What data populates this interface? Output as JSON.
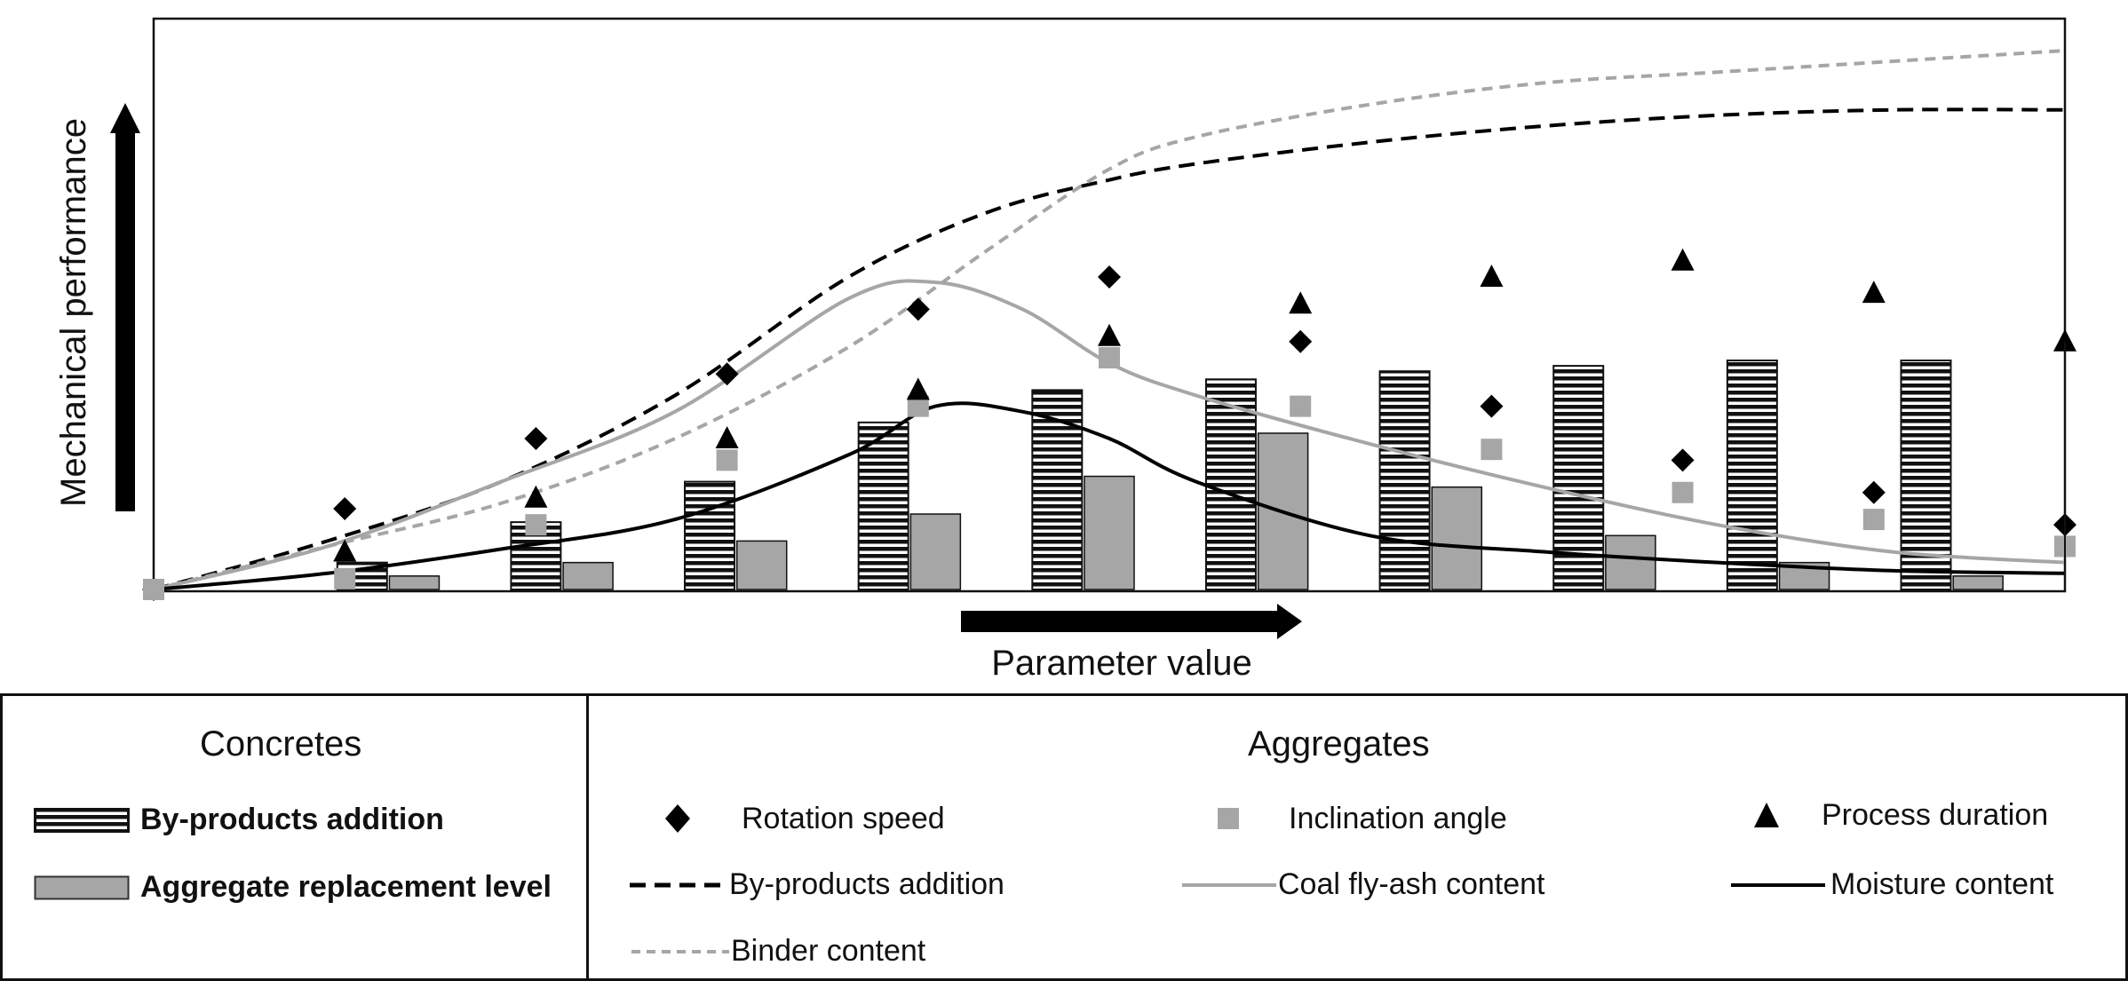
{
  "chart_data": {
    "type": "bar",
    "title": "",
    "xlabel": "Parameter value",
    "ylabel": "Mechanical performance",
    "x": [
      0,
      1,
      2,
      3,
      4,
      5,
      6,
      7,
      8,
      9,
      10,
      11
    ],
    "ylim": [
      0,
      100
    ],
    "grid": false,
    "legend_position": "bottom",
    "bar_series": [
      {
        "name": "By-products addition",
        "pattern": "horizontal-stripes",
        "x": [
          1.2,
          2.2,
          3.2,
          4.2,
          5.2,
          6.2,
          7.2,
          8.2,
          9.2,
          10.2
        ],
        "values": [
          5,
          12.5,
          20,
          31,
          37,
          39,
          40.5,
          41.5,
          42.5,
          42.5
        ]
      },
      {
        "name": "Aggregate replacement level",
        "color": "#a6a6a6",
        "x": [
          1.5,
          2.5,
          3.5,
          4.5,
          5.5,
          6.5,
          7.5,
          8.5,
          9.5,
          10.5
        ],
        "values": [
          2.5,
          5,
          9,
          14,
          21,
          29,
          19,
          10,
          5,
          2.5
        ]
      }
    ],
    "marker_series": [
      {
        "name": "Rotation speed",
        "marker": "diamond",
        "color": "#000000",
        "x": [
          0,
          1.1,
          2.2,
          3.3,
          4.4,
          5.5,
          6.6,
          7.7,
          8.8,
          9.9,
          11
        ],
        "values": [
          0,
          15,
          28,
          40,
          52,
          58,
          46,
          34,
          24,
          18,
          12
        ]
      },
      {
        "name": "Inclination angle",
        "marker": "square",
        "color": "#a6a6a6",
        "x": [
          0,
          1.1,
          2.2,
          3.3,
          4.4,
          5.5,
          6.6,
          7.7,
          8.8,
          9.9,
          11
        ],
        "values": [
          0,
          2,
          12,
          24,
          34,
          43,
          34,
          26,
          18,
          13,
          8
        ]
      },
      {
        "name": "Process duration",
        "marker": "triangle",
        "color": "#000000",
        "x": [
          1.1,
          2.2,
          3.3,
          4.4,
          5.5,
          6.6,
          7.7,
          8.8,
          9.9,
          11
        ],
        "values": [
          7,
          17,
          28,
          37,
          47,
          53,
          58,
          61,
          55,
          46
        ]
      }
    ],
    "line_series": [
      {
        "name": "By-products addition",
        "style": "dashed",
        "color": "#000000",
        "x": [
          0,
          1,
          2,
          3,
          4,
          4.8,
          5.5,
          6,
          7,
          8,
          9,
          10,
          11
        ],
        "values": [
          0,
          9,
          20,
          36,
          58,
          70,
          76,
          79,
          83,
          86,
          88,
          89,
          89
        ]
      },
      {
        "name": "Binder content",
        "style": "dashed",
        "color": "#a6a6a6",
        "x": [
          0,
          1,
          2,
          3,
          4,
          4.8,
          5.5,
          6,
          7,
          8,
          9,
          10,
          11
        ],
        "values": [
          0,
          8,
          16,
          28,
          45,
          63,
          78,
          84,
          90,
          94,
          96,
          98,
          100
        ]
      },
      {
        "name": "Coal fly-ash content",
        "style": "solid",
        "color": "#a6a6a6",
        "x": [
          0,
          1,
          2,
          3,
          4,
          4.5,
          5,
          5.5,
          6,
          7,
          8,
          9,
          10,
          11
        ],
        "values": [
          0,
          8,
          20,
          33,
          54,
          57,
          52,
          42,
          36,
          27,
          19,
          12,
          7,
          5
        ]
      },
      {
        "name": "Moisture content",
        "style": "solid",
        "color": "#000000",
        "x": [
          0,
          1,
          2,
          3,
          4,
          4.5,
          5,
          5.5,
          6,
          7,
          8,
          9,
          10,
          11
        ],
        "values": [
          0,
          3,
          7.5,
          13,
          25,
          34,
          33,
          28,
          20,
          10,
          7,
          5,
          3.5,
          3
        ]
      }
    ]
  },
  "legend": {
    "concretes_heading": "Concretes",
    "aggregates_heading": "Aggregates",
    "concretes_items": [
      {
        "label": "By-products addition"
      },
      {
        "label": "Aggregate replacement level"
      }
    ],
    "marker_items": [
      {
        "label": "Rotation speed"
      },
      {
        "label": "Inclination angle"
      },
      {
        "label": "Process duration"
      }
    ],
    "line_items": [
      {
        "label": "By-products addition"
      },
      {
        "label": "Coal fly-ash content"
      },
      {
        "label": "Moisture content"
      },
      {
        "label": "Binder content"
      }
    ]
  }
}
